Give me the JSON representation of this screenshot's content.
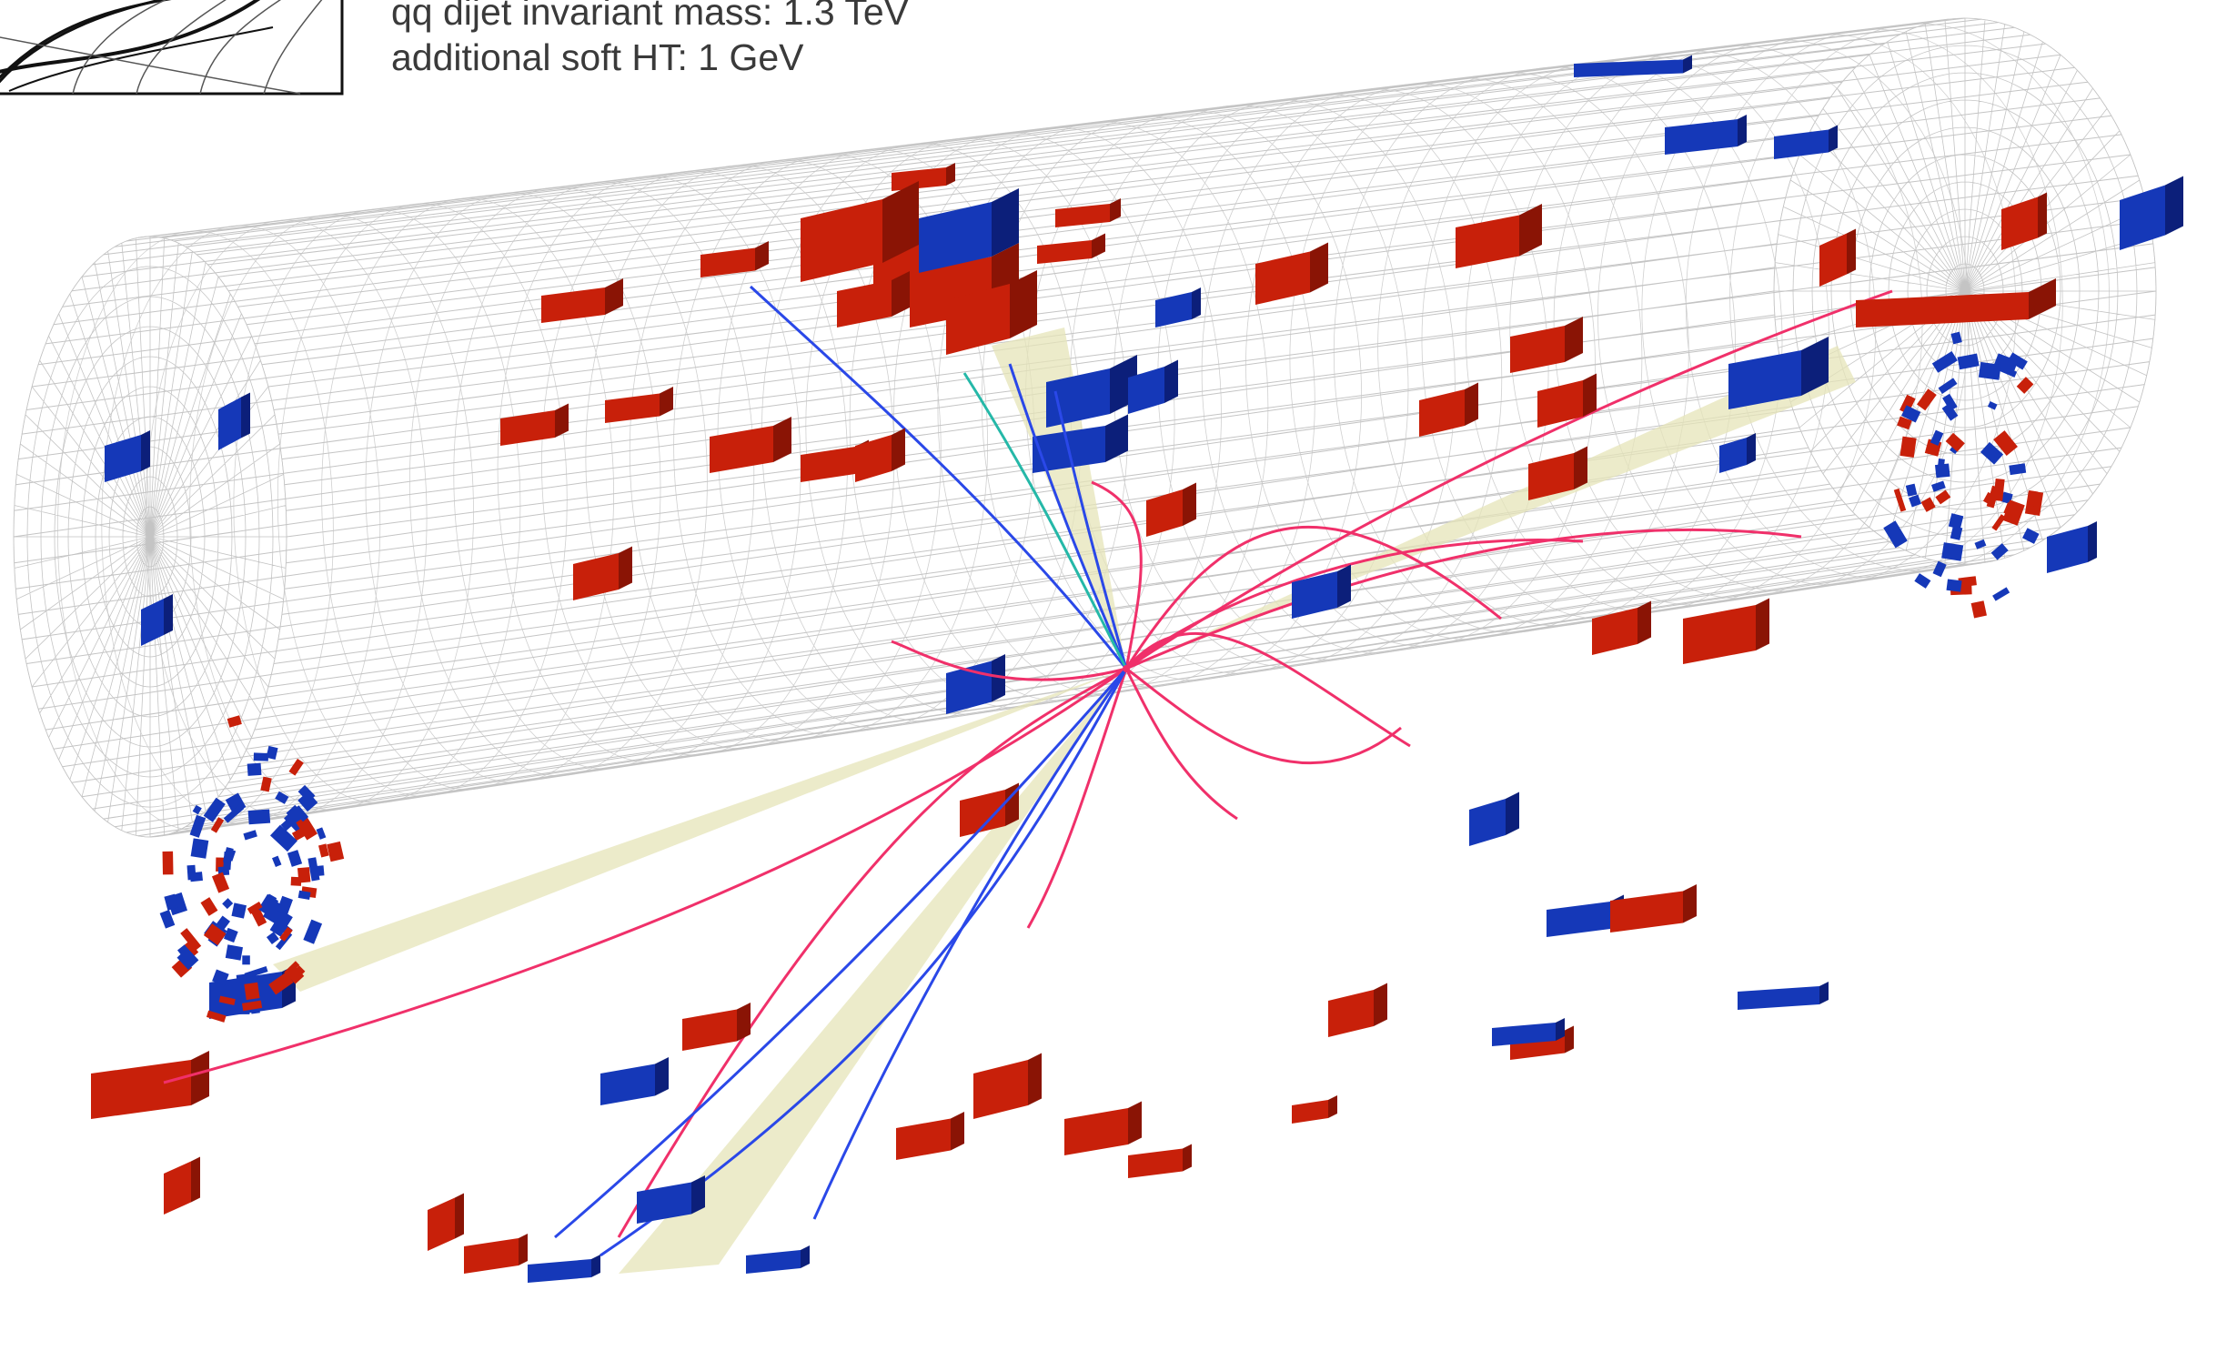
{
  "caption": {
    "line1": "qq dijet invariant mass: 1.3 TeV",
    "line2": "additional soft HT: 1 GeV"
  },
  "colors": {
    "background": "#ffffff",
    "grid": "#c4c4c4",
    "tower_red": "#c8200a",
    "tower_red_dark": "#8a1405",
    "tower_blue": "#1538b8",
    "tower_blue_dark": "#0c1f7a",
    "track_pink": "#f0306a",
    "track_blue": "#2a48e8",
    "track_cyan": "#25b8a8",
    "jet_cone": "#e6e4b8",
    "text": "#3a3a3a"
  },
  "icons": {
    "logo": "detector-tracks-logo"
  }
}
